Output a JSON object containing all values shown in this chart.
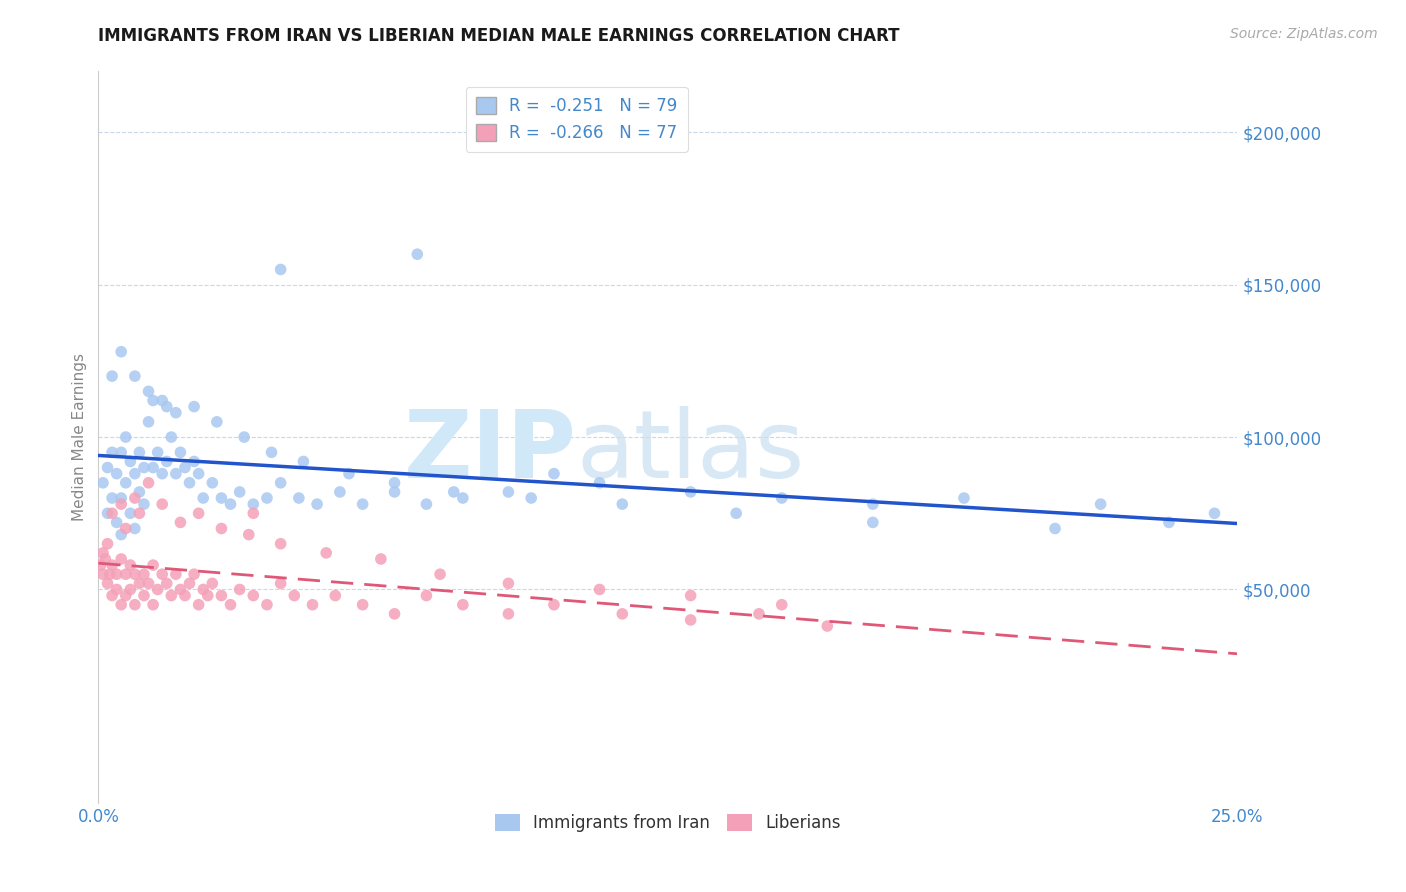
{
  "title": "IMMIGRANTS FROM IRAN VS LIBERIAN MEDIAN MALE EARNINGS CORRELATION CHART",
  "source": "Source: ZipAtlas.com",
  "ylabel": "Median Male Earnings",
  "series1_name": "Immigrants from Iran",
  "series2_name": "Liberians",
  "series1_color": "#a8c8f0",
  "series2_color": "#f4a0b8",
  "series1_line_color": "#2255cc",
  "series2_line_color": "#e05878",
  "background_color": "#ffffff",
  "grid_color": "#c8d8e8",
  "title_color": "#1a1a1a",
  "axis_tick_color": "#4488cc",
  "watermark_zip": "ZIP",
  "watermark_atlas": "atlas",
  "watermark_color": "#d0e8f8",
  "xlim": [
    0.0,
    0.25
  ],
  "ylim": [
    -20000,
    220000
  ],
  "x_ticks": [
    0.0,
    0.05,
    0.1,
    0.15,
    0.2,
    0.25
  ],
  "x_tick_labels": [
    "0.0%",
    "",
    "",
    "",
    "",
    "25.0%"
  ],
  "y_ticks": [
    50000,
    100000,
    150000,
    200000
  ],
  "y_tick_labels": [
    "$50,000",
    "$100,000",
    "$150,000",
    "$200,000"
  ],
  "iran_x": [
    0.001,
    0.002,
    0.002,
    0.003,
    0.003,
    0.004,
    0.004,
    0.005,
    0.005,
    0.005,
    0.006,
    0.006,
    0.007,
    0.007,
    0.008,
    0.008,
    0.009,
    0.009,
    0.01,
    0.01,
    0.011,
    0.012,
    0.012,
    0.013,
    0.014,
    0.015,
    0.015,
    0.016,
    0.017,
    0.018,
    0.019,
    0.02,
    0.021,
    0.022,
    0.023,
    0.025,
    0.027,
    0.029,
    0.031,
    0.034,
    0.037,
    0.04,
    0.044,
    0.048,
    0.053,
    0.058,
    0.065,
    0.072,
    0.08,
    0.09,
    0.1,
    0.11,
    0.13,
    0.15,
    0.17,
    0.19,
    0.22,
    0.235,
    0.245,
    0.003,
    0.005,
    0.008,
    0.011,
    0.014,
    0.017,
    0.021,
    0.026,
    0.032,
    0.038,
    0.045,
    0.055,
    0.065,
    0.078,
    0.095,
    0.115,
    0.14,
    0.17,
    0.21,
    0.04,
    0.07
  ],
  "iran_y": [
    85000,
    90000,
    75000,
    95000,
    80000,
    88000,
    72000,
    95000,
    80000,
    68000,
    100000,
    85000,
    92000,
    75000,
    88000,
    70000,
    95000,
    82000,
    90000,
    78000,
    105000,
    112000,
    90000,
    95000,
    88000,
    110000,
    92000,
    100000,
    88000,
    95000,
    90000,
    85000,
    92000,
    88000,
    80000,
    85000,
    80000,
    78000,
    82000,
    78000,
    80000,
    85000,
    80000,
    78000,
    82000,
    78000,
    82000,
    78000,
    80000,
    82000,
    88000,
    85000,
    82000,
    80000,
    78000,
    80000,
    78000,
    72000,
    75000,
    120000,
    128000,
    120000,
    115000,
    112000,
    108000,
    110000,
    105000,
    100000,
    95000,
    92000,
    88000,
    85000,
    82000,
    80000,
    78000,
    75000,
    72000,
    70000,
    155000,
    160000
  ],
  "lib_x": [
    0.0005,
    0.001,
    0.001,
    0.0015,
    0.002,
    0.002,
    0.0025,
    0.003,
    0.003,
    0.004,
    0.004,
    0.005,
    0.005,
    0.006,
    0.006,
    0.007,
    0.007,
    0.008,
    0.008,
    0.009,
    0.01,
    0.01,
    0.011,
    0.012,
    0.012,
    0.013,
    0.014,
    0.015,
    0.016,
    0.017,
    0.018,
    0.019,
    0.02,
    0.021,
    0.022,
    0.023,
    0.024,
    0.025,
    0.027,
    0.029,
    0.031,
    0.034,
    0.037,
    0.04,
    0.043,
    0.047,
    0.052,
    0.058,
    0.065,
    0.072,
    0.08,
    0.09,
    0.1,
    0.115,
    0.13,
    0.145,
    0.16,
    0.003,
    0.005,
    0.008,
    0.011,
    0.014,
    0.018,
    0.022,
    0.027,
    0.033,
    0.04,
    0.05,
    0.062,
    0.075,
    0.09,
    0.11,
    0.13,
    0.15,
    0.006,
    0.009,
    0.034
  ],
  "lib_y": [
    58000,
    62000,
    55000,
    60000,
    52000,
    65000,
    55000,
    58000,
    48000,
    55000,
    50000,
    60000,
    45000,
    55000,
    48000,
    58000,
    50000,
    55000,
    45000,
    52000,
    55000,
    48000,
    52000,
    58000,
    45000,
    50000,
    55000,
    52000,
    48000,
    55000,
    50000,
    48000,
    52000,
    55000,
    45000,
    50000,
    48000,
    52000,
    48000,
    45000,
    50000,
    48000,
    45000,
    52000,
    48000,
    45000,
    48000,
    45000,
    42000,
    48000,
    45000,
    42000,
    45000,
    42000,
    40000,
    42000,
    38000,
    75000,
    78000,
    80000,
    85000,
    78000,
    72000,
    75000,
    70000,
    68000,
    65000,
    62000,
    60000,
    55000,
    52000,
    50000,
    48000,
    45000,
    70000,
    75000,
    75000
  ]
}
